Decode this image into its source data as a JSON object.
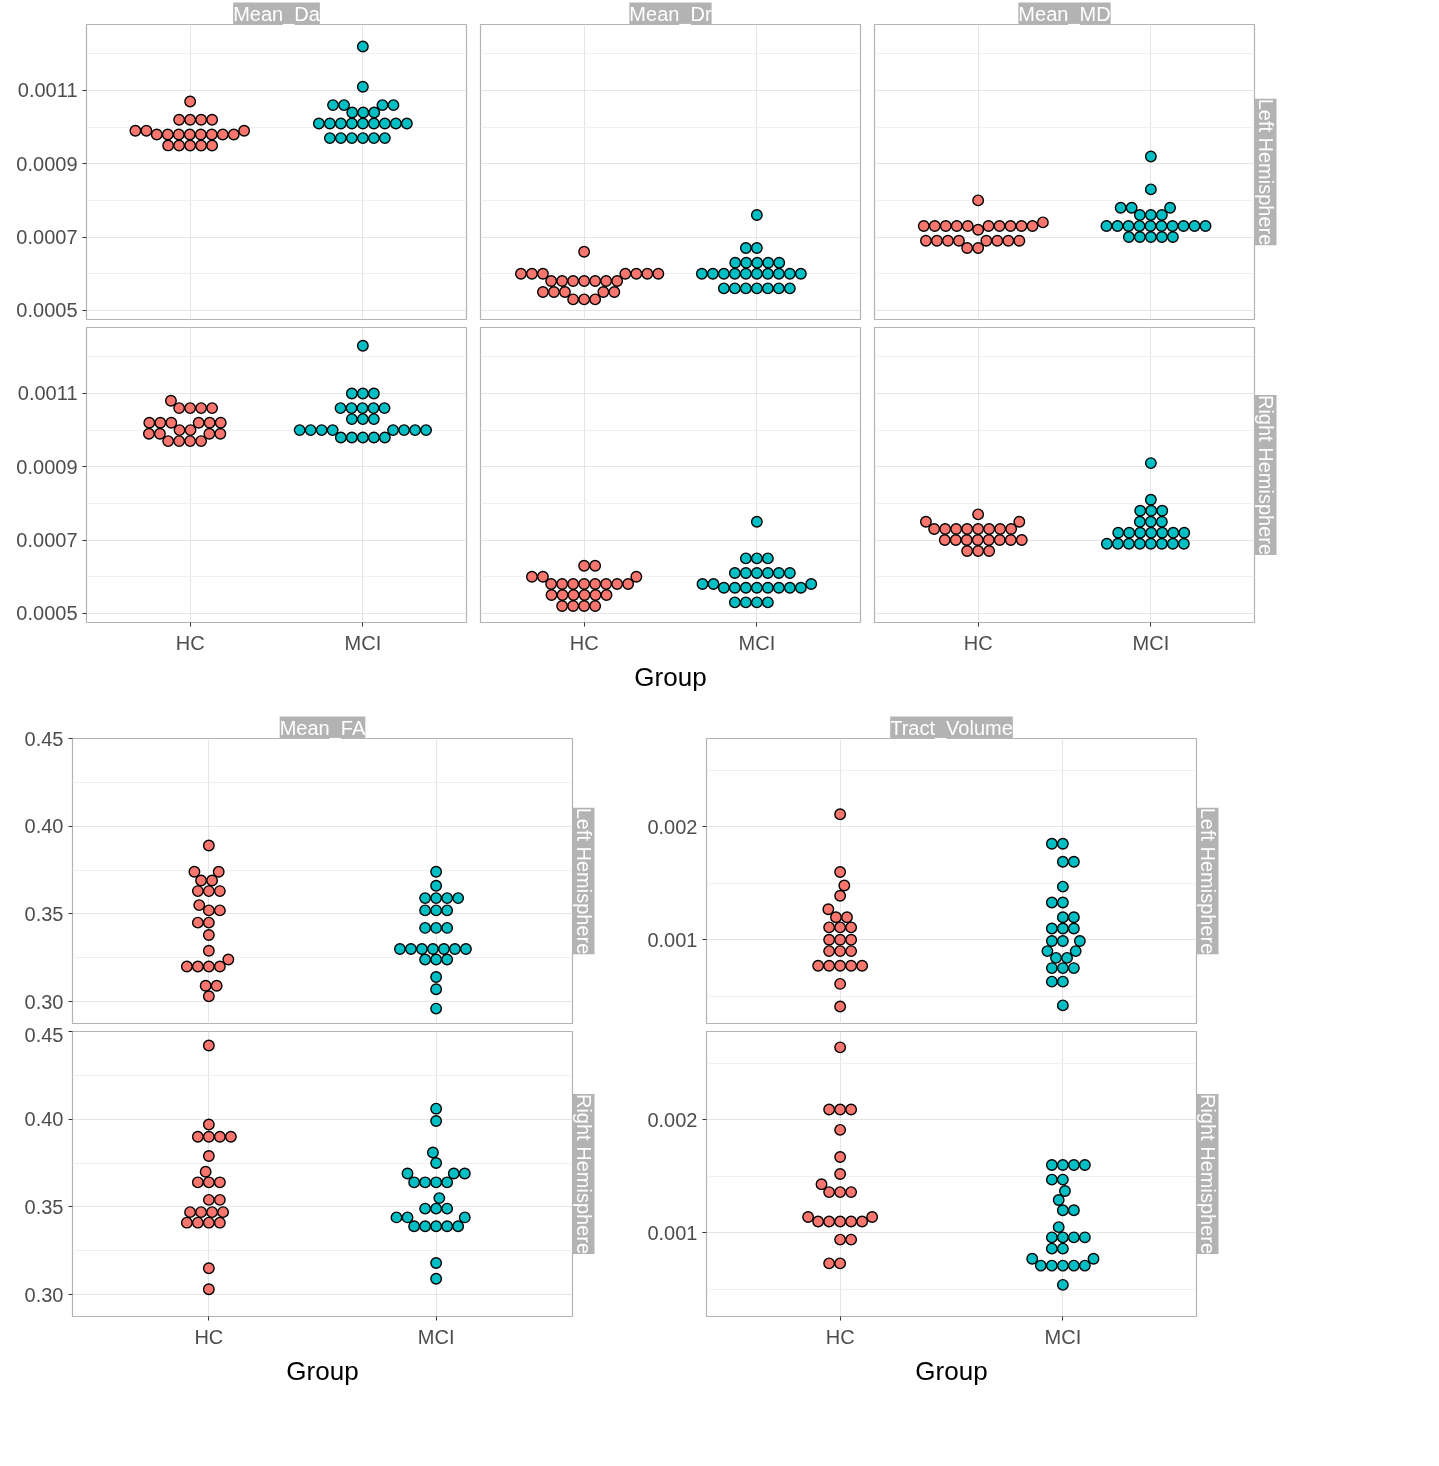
{
  "chart_data": [
    {
      "type": "scatter",
      "title": "Mean_Da",
      "categories": [
        "HC",
        "MCI"
      ],
      "marker": "circle",
      "grid": true,
      "tick_labels": "y",
      "ylim": [
        0.000475,
        0.00128
      ],
      "yticks": [
        0.0005,
        0.0007,
        0.0009,
        0.0011
      ],
      "series": [
        {
          "color": "#f8766d",
          "x": [
            "HC",
            "HC",
            "HC",
            "HC",
            "HC",
            "HC",
            "HC",
            "HC",
            "HC",
            "HC",
            "HC",
            "HC",
            "HC",
            "HC",
            "HC",
            "HC",
            "HC",
            "HC",
            "HC",
            "HC",
            "HC"
          ],
          "values": [
            0.00098,
            0.00098,
            0.00098,
            0.00098,
            0.00098,
            0.00098,
            0.00098,
            0.00098,
            0.00099,
            0.00099,
            0.00099,
            0.00095,
            0.00095,
            0.00095,
            0.00095,
            0.00095,
            0.00102,
            0.00102,
            0.00102,
            0.00102,
            0.00107
          ]
        },
        {
          "color": "#00bfc4",
          "x": [
            "MCI",
            "MCI",
            "MCI",
            "MCI",
            "MCI",
            "MCI",
            "MCI",
            "MCI",
            "MCI",
            "MCI",
            "MCI",
            "MCI",
            "MCI",
            "MCI",
            "MCI",
            "MCI",
            "MCI",
            "MCI",
            "MCI",
            "MCI",
            "MCI",
            "MCI",
            "MCI",
            "MCI"
          ],
          "values": [
            0.00122,
            0.00111,
            0.00106,
            0.00106,
            0.00106,
            0.00106,
            0.00104,
            0.00104,
            0.00104,
            0.00101,
            0.00101,
            0.00101,
            0.00101,
            0.00101,
            0.00101,
            0.00101,
            0.00101,
            0.00101,
            0.00097,
            0.00097,
            0.00097,
            0.00097,
            0.00097,
            0.00097
          ]
        }
      ]
    },
    {
      "type": "scatter",
      "title": "Mean_Dr",
      "categories": [
        "HC",
        "MCI"
      ],
      "marker": "circle",
      "grid": true,
      "tick_labels": false,
      "ylim": [
        0.000475,
        0.00128
      ],
      "yticks": [
        0.0005,
        0.0007,
        0.0009,
        0.0011
      ],
      "series": [
        {
          "color": "#f8766d",
          "x": [
            "HC",
            "HC",
            "HC",
            "HC",
            "HC",
            "HC",
            "HC",
            "HC",
            "HC",
            "HC",
            "HC",
            "HC",
            "HC",
            "HC",
            "HC",
            "HC",
            "HC",
            "HC",
            "HC",
            "HC",
            "HC",
            "HC",
            "HC"
          ],
          "values": [
            0.00066,
            0.0006,
            0.0006,
            0.0006,
            0.0006,
            0.0006,
            0.0006,
            0.0006,
            0.00058,
            0.00058,
            0.00058,
            0.00058,
            0.00058,
            0.00058,
            0.00058,
            0.00055,
            0.00055,
            0.00055,
            0.00055,
            0.00055,
            0.00053,
            0.00053,
            0.00053
          ]
        },
        {
          "color": "#00bfc4",
          "x": [
            "MCI",
            "MCI",
            "MCI",
            "MCI",
            "MCI",
            "MCI",
            "MCI",
            "MCI",
            "MCI",
            "MCI",
            "MCI",
            "MCI",
            "MCI",
            "MCI",
            "MCI",
            "MCI",
            "MCI",
            "MCI",
            "MCI",
            "MCI",
            "MCI",
            "MCI",
            "MCI",
            "MCI",
            "MCI"
          ],
          "values": [
            0.00076,
            0.00067,
            0.00067,
            0.00063,
            0.00063,
            0.00063,
            0.00063,
            0.00063,
            0.0006,
            0.0006,
            0.0006,
            0.0006,
            0.0006,
            0.0006,
            0.0006,
            0.0006,
            0.0006,
            0.0006,
            0.00056,
            0.00056,
            0.00056,
            0.00056,
            0.00056,
            0.00056,
            0.00056
          ]
        }
      ]
    },
    {
      "type": "scatter",
      "title": "Mean_MD",
      "annotations": [
        "Left Hemisphere"
      ],
      "categories": [
        "HC",
        "MCI"
      ],
      "marker": "circle",
      "grid": true,
      "tick_labels": false,
      "ylim": [
        0.000475,
        0.00128
      ],
      "yticks": [
        0.0005,
        0.0007,
        0.0009,
        0.0011
      ],
      "series": [
        {
          "color": "#f8766d",
          "x": [
            "HC",
            "HC",
            "HC",
            "HC",
            "HC",
            "HC",
            "HC",
            "HC",
            "HC",
            "HC",
            "HC",
            "HC",
            "HC",
            "HC",
            "HC",
            "HC",
            "HC",
            "HC",
            "HC",
            "HC",
            "HC",
            "HC",
            "HC"
          ],
          "values": [
            0.0008,
            0.00074,
            0.00073,
            0.00073,
            0.00073,
            0.00073,
            0.00073,
            0.00073,
            0.00073,
            0.00073,
            0.00073,
            0.00073,
            0.00072,
            0.00069,
            0.00069,
            0.00069,
            0.00069,
            0.00069,
            0.00069,
            0.00069,
            0.00069,
            0.00067,
            0.00067
          ]
        },
        {
          "color": "#00bfc4",
          "x": [
            "MCI",
            "MCI",
            "MCI",
            "MCI",
            "MCI",
            "MCI",
            "MCI",
            "MCI",
            "MCI",
            "MCI",
            "MCI",
            "MCI",
            "MCI",
            "MCI",
            "MCI",
            "MCI",
            "MCI",
            "MCI",
            "MCI",
            "MCI",
            "MCI",
            "MCI",
            "MCI"
          ],
          "values": [
            0.00092,
            0.00083,
            0.00078,
            0.00078,
            0.00078,
            0.00076,
            0.00076,
            0.00076,
            0.00073,
            0.00073,
            0.00073,
            0.00073,
            0.00073,
            0.00073,
            0.00073,
            0.00073,
            0.00073,
            0.00073,
            0.0007,
            0.0007,
            0.0007,
            0.0007,
            0.0007
          ]
        }
      ]
    },
    {
      "type": "scatter",
      "categories": [
        "HC",
        "MCI"
      ],
      "marker": "circle",
      "grid": true,
      "ylim": [
        0.000475,
        0.00128
      ],
      "yticks": [
        0.0005,
        0.0007,
        0.0009,
        0.0011
      ],
      "series": [
        {
          "color": "#f8766d",
          "x": [
            "HC",
            "HC",
            "HC",
            "HC",
            "HC",
            "HC",
            "HC",
            "HC",
            "HC",
            "HC",
            "HC",
            "HC",
            "HC",
            "HC",
            "HC",
            "HC",
            "HC",
            "HC",
            "HC",
            "HC",
            "HC"
          ],
          "values": [
            0.00108,
            0.00106,
            0.00106,
            0.00106,
            0.00106,
            0.00102,
            0.00102,
            0.00102,
            0.00102,
            0.00102,
            0.00102,
            0.001,
            0.001,
            0.00099,
            0.00099,
            0.00099,
            0.00099,
            0.00097,
            0.00097,
            0.00097,
            0.00097
          ]
        },
        {
          "color": "#00bfc4",
          "x": [
            "MCI",
            "MCI",
            "MCI",
            "MCI",
            "MCI",
            "MCI",
            "MCI",
            "MCI",
            "MCI",
            "MCI",
            "MCI",
            "MCI",
            "MCI",
            "MCI",
            "MCI",
            "MCI",
            "MCI",
            "MCI",
            "MCI",
            "MCI",
            "MCI",
            "MCI",
            "MCI",
            "MCI",
            "MCI"
          ],
          "values": [
            0.00123,
            0.0011,
            0.0011,
            0.0011,
            0.00106,
            0.00106,
            0.00106,
            0.00106,
            0.00106,
            0.00103,
            0.00103,
            0.00103,
            0.001,
            0.001,
            0.001,
            0.001,
            0.001,
            0.001,
            0.001,
            0.001,
            0.00098,
            0.00098,
            0.00098,
            0.00098,
            0.00098
          ]
        }
      ]
    },
    {
      "type": "scatter",
      "xlabel": "Group",
      "categories": [
        "HC",
        "MCI"
      ],
      "marker": "circle",
      "grid": true,
      "tick_labels": "x",
      "ylim": [
        0.000475,
        0.00128
      ],
      "yticks": [
        0.0005,
        0.0007,
        0.0009,
        0.0011
      ],
      "series": [
        {
          "color": "#f8766d",
          "x": [
            "HC",
            "HC",
            "HC",
            "HC",
            "HC",
            "HC",
            "HC",
            "HC",
            "HC",
            "HC",
            "HC",
            "HC",
            "HC",
            "HC",
            "HC",
            "HC",
            "HC",
            "HC",
            "HC",
            "HC",
            "HC",
            "HC",
            "HC"
          ],
          "values": [
            0.00063,
            0.00063,
            0.0006,
            0.0006,
            0.0006,
            0.00058,
            0.00058,
            0.00058,
            0.00058,
            0.00058,
            0.00058,
            0.00058,
            0.00058,
            0.00055,
            0.00055,
            0.00055,
            0.00055,
            0.00055,
            0.00055,
            0.00052,
            0.00052,
            0.00052,
            0.00052
          ]
        },
        {
          "color": "#00bfc4",
          "x": [
            "MCI",
            "MCI",
            "MCI",
            "MCI",
            "MCI",
            "MCI",
            "MCI",
            "MCI",
            "MCI",
            "MCI",
            "MCI",
            "MCI",
            "MCI",
            "MCI",
            "MCI",
            "MCI",
            "MCI",
            "MCI",
            "MCI",
            "MCI",
            "MCI",
            "MCI",
            "MCI",
            "MCI",
            "MCI"
          ],
          "values": [
            0.00075,
            0.00065,
            0.00065,
            0.00065,
            0.00061,
            0.00061,
            0.00061,
            0.00061,
            0.00061,
            0.00061,
            0.00058,
            0.00058,
            0.00058,
            0.00057,
            0.00057,
            0.00057,
            0.00057,
            0.00057,
            0.00057,
            0.00057,
            0.00057,
            0.00053,
            0.00053,
            0.00053,
            0.00053
          ]
        }
      ]
    },
    {
      "type": "scatter",
      "annotations": [
        "Right Hemisphere"
      ],
      "categories": [
        "HC",
        "MCI"
      ],
      "marker": "circle",
      "grid": true,
      "tick_labels": "x",
      "ylim": [
        0.000475,
        0.00128
      ],
      "yticks": [
        0.0005,
        0.0007,
        0.0009,
        0.0011
      ],
      "series": [
        {
          "color": "#f8766d",
          "x": [
            "HC",
            "HC",
            "HC",
            "HC",
            "HC",
            "HC",
            "HC",
            "HC",
            "HC",
            "HC",
            "HC",
            "HC",
            "HC",
            "HC",
            "HC",
            "HC",
            "HC",
            "HC",
            "HC",
            "HC",
            "HC",
            "HC"
          ],
          "values": [
            0.00077,
            0.00075,
            0.00075,
            0.00073,
            0.00073,
            0.00073,
            0.00073,
            0.00073,
            0.00073,
            0.00073,
            0.00073,
            0.0007,
            0.0007,
            0.0007,
            0.0007,
            0.0007,
            0.0007,
            0.0007,
            0.0007,
            0.00067,
            0.00067,
            0.00067
          ]
        },
        {
          "color": "#00bfc4",
          "x": [
            "MCI",
            "MCI",
            "MCI",
            "MCI",
            "MCI",
            "MCI",
            "MCI",
            "MCI",
            "MCI",
            "MCI",
            "MCI",
            "MCI",
            "MCI",
            "MCI",
            "MCI",
            "MCI",
            "MCI",
            "MCI",
            "MCI",
            "MCI",
            "MCI",
            "MCI",
            "MCI"
          ],
          "values": [
            0.00091,
            0.00081,
            0.00078,
            0.00078,
            0.00078,
            0.00075,
            0.00075,
            0.00075,
            0.00072,
            0.00072,
            0.00072,
            0.00072,
            0.00072,
            0.00072,
            0.00072,
            0.00069,
            0.00069,
            0.00069,
            0.00069,
            0.00069,
            0.00069,
            0.00069,
            0.00069
          ]
        }
      ]
    },
    {
      "type": "scatter",
      "title": "Mean_FA",
      "annotations": [
        "Left Hemisphere"
      ],
      "categories": [
        "HC",
        "MCI"
      ],
      "marker": "circle",
      "grid": true,
      "tick_labels": "y",
      "ylim": [
        0.2875,
        0.45
      ],
      "yticks": [
        {
          "value": 0.3,
          "label": "0.30"
        },
        {
          "value": 0.35,
          "label": "0.35"
        },
        {
          "value": 0.4,
          "label": "0.40"
        },
        {
          "value": 0.45,
          "label": "0.45"
        }
      ],
      "series": [
        {
          "color": "#f8766d",
          "x": [
            "HC",
            "HC",
            "HC",
            "HC",
            "HC",
            "HC",
            "HC",
            "HC",
            "HC",
            "HC",
            "HC",
            "HC",
            "HC",
            "HC",
            "HC",
            "HC",
            "HC",
            "HC",
            "HC",
            "HC",
            "HC",
            "HC",
            "HC"
          ],
          "values": [
            0.389,
            0.374,
            0.374,
            0.369,
            0.369,
            0.363,
            0.363,
            0.363,
            0.355,
            0.352,
            0.352,
            0.345,
            0.345,
            0.338,
            0.329,
            0.324,
            0.32,
            0.32,
            0.32,
            0.32,
            0.309,
            0.309,
            0.303
          ]
        },
        {
          "color": "#00bfc4",
          "x": [
            "MCI",
            "MCI",
            "MCI",
            "MCI",
            "MCI",
            "MCI",
            "MCI",
            "MCI",
            "MCI",
            "MCI",
            "MCI",
            "MCI",
            "MCI",
            "MCI",
            "MCI",
            "MCI",
            "MCI",
            "MCI",
            "MCI",
            "MCI",
            "MCI",
            "MCI",
            "MCI",
            "MCI",
            "MCI"
          ],
          "values": [
            0.374,
            0.366,
            0.359,
            0.359,
            0.359,
            0.359,
            0.352,
            0.352,
            0.352,
            0.342,
            0.342,
            0.342,
            0.33,
            0.33,
            0.33,
            0.33,
            0.33,
            0.33,
            0.33,
            0.324,
            0.324,
            0.324,
            0.314,
            0.307,
            0.296
          ]
        }
      ]
    },
    {
      "type": "scatter",
      "xlabel": "Group",
      "annotations": [
        "Right Hemisphere"
      ],
      "categories": [
        "HC",
        "MCI"
      ],
      "marker": "circle",
      "grid": true,
      "ylim": [
        0.2875,
        0.45
      ],
      "yticks": [
        {
          "value": 0.3,
          "label": "0.30"
        },
        {
          "value": 0.35,
          "label": "0.35"
        },
        {
          "value": 0.4,
          "label": "0.40"
        },
        {
          "value": 0.45,
          "label": "0.45"
        }
      ],
      "series": [
        {
          "color": "#f8766d",
          "x": [
            "HC",
            "HC",
            "HC",
            "HC",
            "HC",
            "HC",
            "HC",
            "HC",
            "HC",
            "HC",
            "HC",
            "HC",
            "HC",
            "HC",
            "HC",
            "HC",
            "HC",
            "HC",
            "HC",
            "HC",
            "HC",
            "HC",
            "HC"
          ],
          "values": [
            0.442,
            0.397,
            0.39,
            0.39,
            0.39,
            0.39,
            0.379,
            0.37,
            0.364,
            0.364,
            0.364,
            0.354,
            0.354,
            0.347,
            0.347,
            0.347,
            0.347,
            0.341,
            0.341,
            0.341,
            0.341,
            0.315,
            0.303
          ]
        },
        {
          "color": "#00bfc4",
          "x": [
            "MCI",
            "MCI",
            "MCI",
            "MCI",
            "MCI",
            "MCI",
            "MCI",
            "MCI",
            "MCI",
            "MCI",
            "MCI",
            "MCI",
            "MCI",
            "MCI",
            "MCI",
            "MCI",
            "MCI",
            "MCI",
            "MCI",
            "MCI",
            "MCI",
            "MCI",
            "MCI",
            "MCI",
            "MCI"
          ],
          "values": [
            0.406,
            0.399,
            0.381,
            0.375,
            0.369,
            0.369,
            0.369,
            0.364,
            0.364,
            0.364,
            0.364,
            0.355,
            0.349,
            0.349,
            0.349,
            0.344,
            0.344,
            0.344,
            0.339,
            0.339,
            0.339,
            0.339,
            0.339,
            0.318,
            0.309
          ]
        }
      ]
    },
    {
      "type": "scatter",
      "title": "Tract_Volume",
      "annotations": [
        "Left Hemisphere"
      ],
      "categories": [
        "HC",
        "MCI"
      ],
      "marker": "circle",
      "grid": true,
      "tick_labels": "y",
      "ylim": [
        0.00026,
        0.00278
      ],
      "yticks": [
        0.001,
        0.002
      ],
      "series": [
        {
          "color": "#f8766d",
          "x": [
            "HC",
            "HC",
            "HC",
            "HC",
            "HC",
            "HC",
            "HC",
            "HC",
            "HC",
            "HC",
            "HC",
            "HC",
            "HC",
            "HC",
            "HC",
            "HC",
            "HC",
            "HC",
            "HC",
            "HC",
            "HC",
            "HC",
            "HC"
          ],
          "values": [
            0.00211,
            0.0016,
            0.00148,
            0.00139,
            0.00127,
            0.0012,
            0.0012,
            0.00111,
            0.00111,
            0.00111,
            0.001,
            0.001,
            0.001,
            0.0009,
            0.0009,
            0.0009,
            0.00077,
            0.00077,
            0.00077,
            0.00077,
            0.00077,
            0.00061,
            0.00041
          ]
        },
        {
          "color": "#00bfc4",
          "x": [
            "MCI",
            "MCI",
            "MCI",
            "MCI",
            "MCI",
            "MCI",
            "MCI",
            "MCI",
            "MCI",
            "MCI",
            "MCI",
            "MCI",
            "MCI",
            "MCI",
            "MCI",
            "MCI",
            "MCI",
            "MCI",
            "MCI",
            "MCI",
            "MCI",
            "MCI",
            "MCI",
            "MCI",
            "MCI"
          ],
          "values": [
            0.00185,
            0.00185,
            0.00169,
            0.00169,
            0.00147,
            0.00133,
            0.00133,
            0.0012,
            0.0012,
            0.0011,
            0.0011,
            0.0011,
            0.00099,
            0.00099,
            0.00099,
            0.0009,
            0.0009,
            0.00084,
            0.00084,
            0.00075,
            0.00075,
            0.00075,
            0.00063,
            0.00063,
            0.00042
          ]
        }
      ]
    },
    {
      "type": "scatter",
      "xlabel": "Group",
      "annotations": [
        "Right Hemisphere"
      ],
      "categories": [
        "HC",
        "MCI"
      ],
      "marker": "circle",
      "grid": true,
      "ylim": [
        0.00026,
        0.00278
      ],
      "yticks": [
        0.001,
        0.002
      ],
      "series": [
        {
          "color": "#f8766d",
          "x": [
            "HC",
            "HC",
            "HC",
            "HC",
            "HC",
            "HC",
            "HC",
            "HC",
            "HC",
            "HC",
            "HC",
            "HC",
            "HC",
            "HC",
            "HC",
            "HC",
            "HC",
            "HC",
            "HC",
            "HC",
            "HC",
            "HC"
          ],
          "values": [
            0.00264,
            0.00209,
            0.00209,
            0.00209,
            0.00191,
            0.00167,
            0.00152,
            0.00143,
            0.00136,
            0.00136,
            0.00136,
            0.00114,
            0.00114,
            0.0011,
            0.0011,
            0.0011,
            0.0011,
            0.0011,
            0.00094,
            0.00094,
            0.00073,
            0.00073
          ]
        },
        {
          "color": "#00bfc4",
          "x": [
            "MCI",
            "MCI",
            "MCI",
            "MCI",
            "MCI",
            "MCI",
            "MCI",
            "MCI",
            "MCI",
            "MCI",
            "MCI",
            "MCI",
            "MCI",
            "MCI",
            "MCI",
            "MCI",
            "MCI",
            "MCI",
            "MCI",
            "MCI",
            "MCI",
            "MCI",
            "MCI",
            "MCI",
            "MCI"
          ],
          "values": [
            0.0016,
            0.0016,
            0.0016,
            0.0016,
            0.00147,
            0.00147,
            0.00137,
            0.00129,
            0.0012,
            0.0012,
            0.00105,
            0.00096,
            0.00096,
            0.00096,
            0.00096,
            0.00086,
            0.00086,
            0.00077,
            0.00077,
            0.00071,
            0.00071,
            0.00071,
            0.00071,
            0.00071,
            0.00054
          ]
        }
      ]
    }
  ]
}
